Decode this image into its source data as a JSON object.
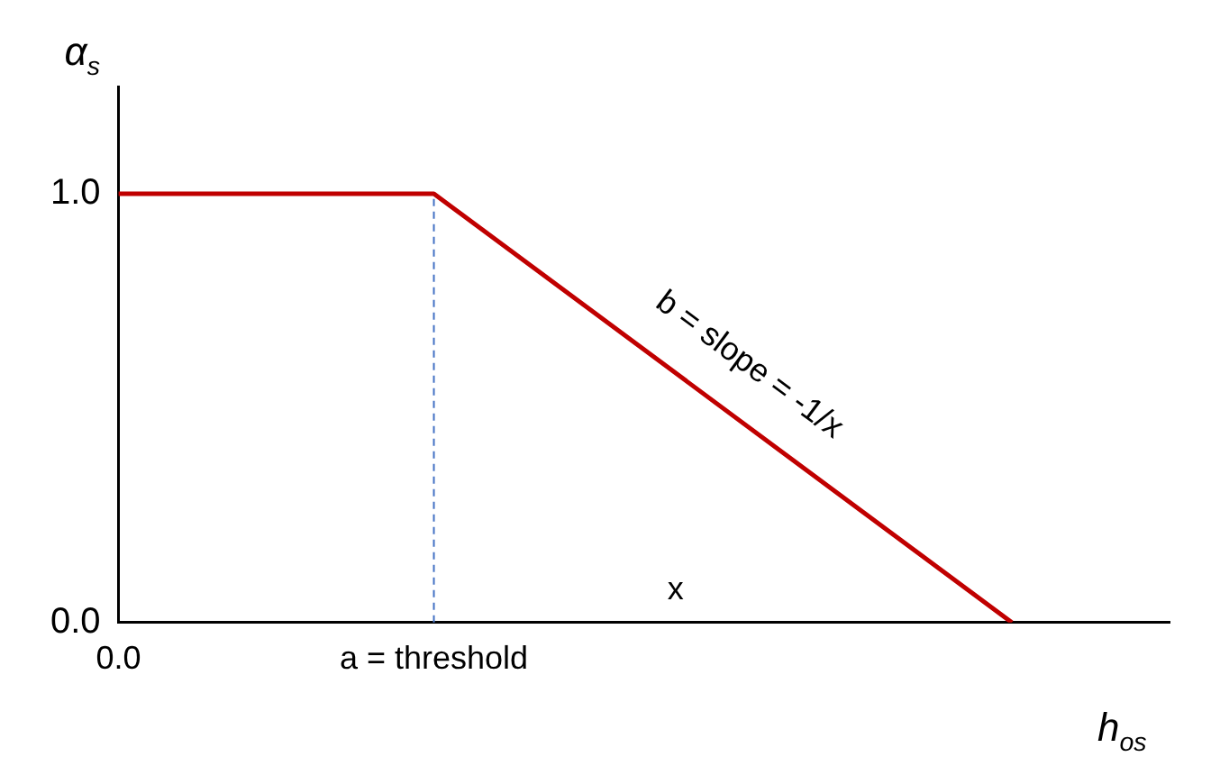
{
  "chart_data": {
    "type": "line",
    "xlabel": "h$_{os}$",
    "ylabel": "α$_{s}$",
    "categories": [
      "0.0",
      null,
      null,
      null,
      null,
      null,
      "a = threshold",
      null,
      null,
      null,
      null,
      null,
      null,
      null,
      null,
      null,
      null,
      null,
      null,
      null,
      null
    ],
    "series": [
      {
        "color": "#c00000",
        "values": [
          1,
          null,
          null,
          null,
          null,
          null,
          1,
          null,
          null,
          null,
          null,
          null,
          null,
          null,
          null,
          null,
          null,
          0,
          null,
          null,
          null
        ]
      }
    ],
    "ylim": [
      0,
      1.25
    ],
    "yticks": [
      {
        "value": 0,
        "label": "0.0"
      },
      {
        "value": 1,
        "label": "1.0"
      }
    ],
    "ref_lines": [
      {
        "axis": "x",
        "value": "a = threshold",
        "color": "#4472c4",
        "line_style": "dashed"
      }
    ],
    "annotations": [
      "b = slope = -1/x",
      "x"
    ],
    "grid": false,
    "legend": false,
    "marker": "none",
    "line_style": "solid"
  }
}
